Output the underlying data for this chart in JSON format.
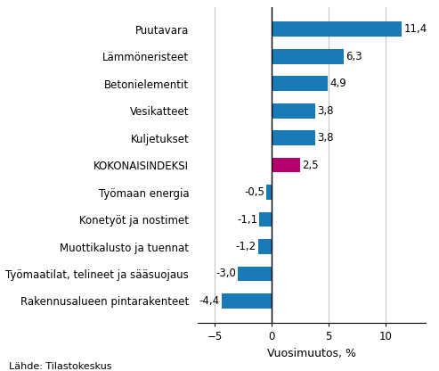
{
  "categories": [
    "Rakennusalueen pintarakenteet",
    "Työmaatilat, telineet ja sääsuojaus",
    "Muottikalusto ja tuennat",
    "Konetyöt ja nostimet",
    "Työmaan energia",
    "KOKONAISINDEKSI",
    "Kuljetukset",
    "Vesikatteet",
    "Betonielementit",
    "Lämmöneristeet",
    "Puutavara"
  ],
  "values": [
    -4.4,
    -3.0,
    -1.2,
    -1.1,
    -0.5,
    2.5,
    3.8,
    3.8,
    4.9,
    6.3,
    11.4
  ],
  "bar_colors": [
    "#1a7ab5",
    "#1a7ab5",
    "#1a7ab5",
    "#1a7ab5",
    "#1a7ab5",
    "#b5006e",
    "#1a7ab5",
    "#1a7ab5",
    "#1a7ab5",
    "#1a7ab5",
    "#1a7ab5"
  ],
  "xlabel": "Vuosimuutos, %",
  "xlim": [
    -6.5,
    13.5
  ],
  "xticks": [
    -5,
    0,
    5,
    10
  ],
  "source": "Lähde: Tilastokeskus",
  "value_labels": [
    "-4,4",
    "-3,0",
    "-1,2",
    "-1,1",
    "-0,5",
    "2,5",
    "3,8",
    "3,8",
    "4,9",
    "6,3",
    "11,4"
  ],
  "background_color": "#ffffff",
  "grid_color": "#c8c8c8",
  "bar_height": 0.55,
  "label_fontsize": 8.5,
  "value_fontsize": 8.5,
  "xlabel_fontsize": 9,
  "source_fontsize": 8
}
